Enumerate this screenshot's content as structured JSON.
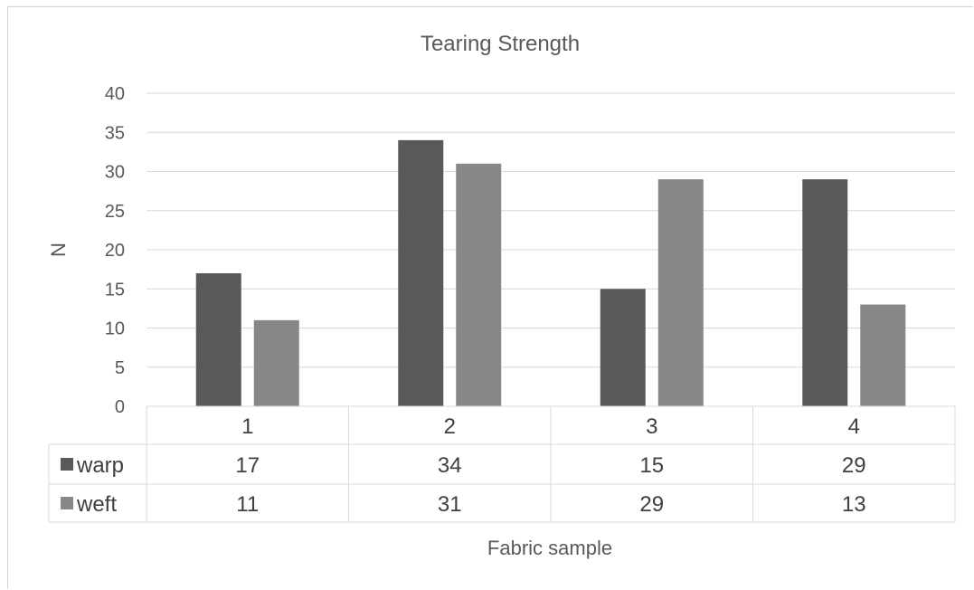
{
  "chart_data": {
    "type": "bar",
    "title": "Tearing Strength",
    "xlabel": "Fabric sample",
    "ylabel": "N",
    "categories": [
      "1",
      "2",
      "3",
      "4"
    ],
    "series": [
      {
        "name": "warp",
        "values": [
          17,
          34,
          15,
          29
        ],
        "color": "#595959"
      },
      {
        "name": "weft",
        "values": [
          11,
          31,
          29,
          13
        ],
        "color": "#878787"
      }
    ],
    "ylim": [
      0,
      40
    ],
    "yticks": [
      0,
      5,
      10,
      15,
      20,
      25,
      30,
      35,
      40
    ],
    "grid": true,
    "legend": "data-table"
  }
}
